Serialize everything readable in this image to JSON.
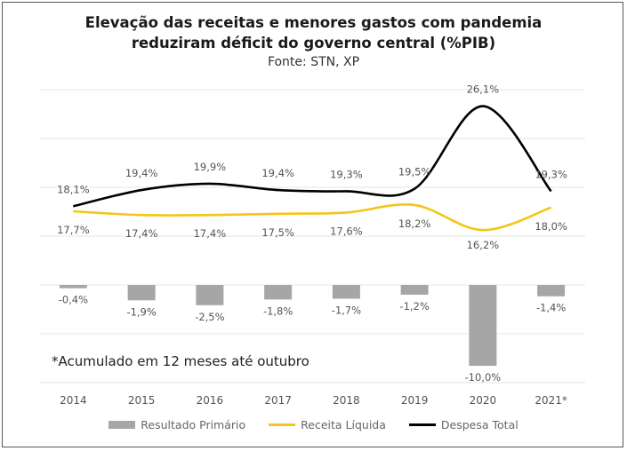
{
  "chart_data": {
    "type": "bar+line",
    "title_line1": "Elevação das receitas e menores gastos com pandemia",
    "title_line2": "reduziram déficit do governo central (%PIB)",
    "subtitle": "Fonte: STN, XP",
    "note": "*Acumulado em 12 meses até outubro",
    "categories": [
      "2014",
      "2015",
      "2016",
      "2017",
      "2018",
      "2019",
      "2020",
      "2021*"
    ],
    "series": [
      {
        "name": "Resultado Primário",
        "kind": "bar",
        "color": "#a6a6a6",
        "values": [
          -0.4,
          -1.9,
          -2.5,
          -1.8,
          -1.7,
          -1.2,
          -10.0,
          -1.4
        ],
        "labels": [
          "-0,4%",
          "-1,9%",
          "-2,5%",
          "-1,8%",
          "-1,7%",
          "-1,2%",
          "-10,0%",
          "-1,4%"
        ]
      },
      {
        "name": "Receita Líquida",
        "kind": "line",
        "color": "#f5c518",
        "values": [
          17.7,
          17.4,
          17.4,
          17.5,
          17.6,
          18.2,
          16.2,
          18.0
        ],
        "labels": [
          "17,7%",
          "17,4%",
          "17,4%",
          "17,5%",
          "17,6%",
          "18,2%",
          "16,2%",
          "18,0%"
        ]
      },
      {
        "name": "Despesa Total",
        "kind": "line",
        "color": "#000000",
        "values": [
          18.1,
          19.4,
          19.9,
          19.4,
          19.3,
          19.5,
          26.1,
          19.3
        ],
        "labels": [
          "18,1%",
          "19,4%",
          "19,9%",
          "19,4%",
          "19,3%",
          "19,5%",
          "26,1%",
          "19,3%"
        ]
      }
    ],
    "legend_position": "bottom",
    "grid": true
  }
}
